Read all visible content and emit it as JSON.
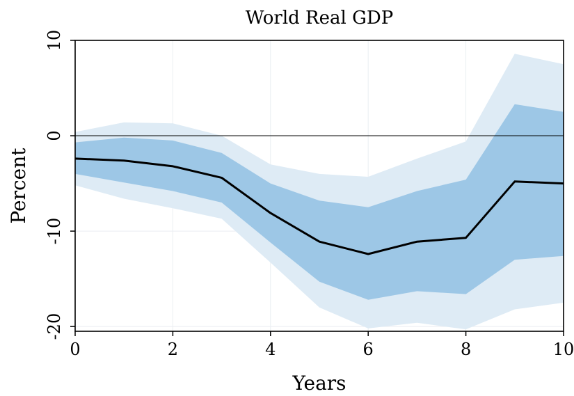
{
  "colors": {
    "band_outer": "#deebf5",
    "band_inner": "#9dc7e6",
    "line": "#000000",
    "grid": "#eaeef2",
    "zero_line": "#000000"
  },
  "chart_data": {
    "type": "line",
    "title": "World Real GDP",
    "xlabel": "Years",
    "ylabel": "Percent",
    "xlim": [
      0,
      10
    ],
    "ylim": [
      -20.5,
      10
    ],
    "x_ticks": [
      0,
      2,
      4,
      6,
      8,
      10
    ],
    "x_tick_labels": [
      "0",
      "2",
      "4",
      "6",
      "8",
      "10"
    ],
    "y_ticks": [
      -20,
      -10,
      0,
      10
    ],
    "y_tick_labels": [
      "-20",
      "-10",
      "0",
      "10"
    ],
    "grid": true,
    "reference_line_y": 0,
    "x": [
      0,
      1,
      2,
      3,
      4,
      5,
      6,
      7,
      8,
      9,
      10
    ],
    "series": [
      {
        "values": [
          -2.4,
          -2.6,
          -3.2,
          -4.4,
          -8.1,
          -11.1,
          -12.4,
          -11.1,
          -10.7,
          -4.8,
          -5.0
        ]
      }
    ],
    "bands": [
      {
        "level": "outer",
        "upper": [
          0.4,
          1.4,
          1.3,
          0.0,
          -3.0,
          -4.0,
          -4.3,
          -2.4,
          -0.6,
          8.6,
          7.5
        ],
        "lower": [
          -5.2,
          -6.6,
          -7.6,
          -8.7,
          -13.3,
          -18.0,
          -20.2,
          -19.6,
          -20.3,
          -18.2,
          -17.5
        ]
      },
      {
        "level": "inner",
        "upper": [
          -0.7,
          -0.2,
          -0.5,
          -1.8,
          -5.0,
          -6.8,
          -7.5,
          -5.8,
          -4.6,
          3.3,
          2.5
        ],
        "lower": [
          -4.0,
          -4.9,
          -5.8,
          -7.0,
          -11.2,
          -15.3,
          -17.2,
          -16.3,
          -16.6,
          -13.0,
          -12.6
        ]
      }
    ]
  }
}
